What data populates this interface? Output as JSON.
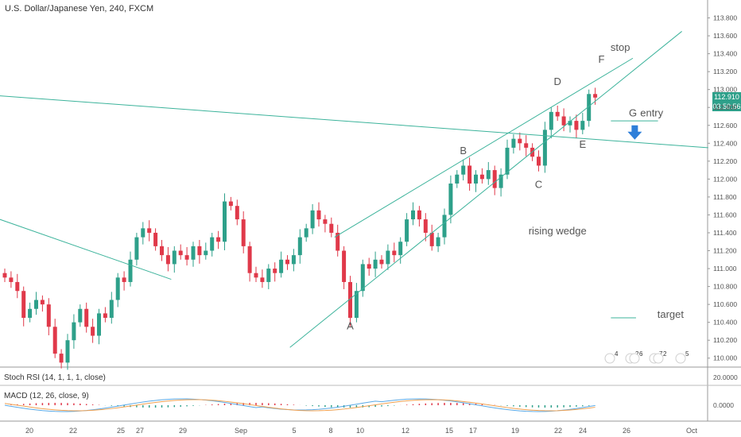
{
  "chart_data": {
    "type": "candlestick",
    "title": "U.S. Dollar/Japanese Yen, 240, FXCM",
    "y_ticks": [
      "113.800",
      "113.600",
      "113.400",
      "113.200",
      "113.000",
      "112.800",
      "112.600",
      "112.400",
      "112.200",
      "112.000",
      "111.800",
      "111.600",
      "111.400",
      "111.200",
      "111.000",
      "110.800",
      "110.600",
      "110.400",
      "110.200",
      "110.000"
    ],
    "y_range": [
      109.9,
      114.0
    ],
    "last_price": "112.910",
    "countdown": "03:50:56",
    "x_ticks": [
      "20",
      "22",
      "25",
      "27",
      "29",
      "Sep",
      "5",
      "8",
      "10",
      "12",
      "15",
      "17",
      "19",
      "22",
      "24",
      "26",
      "Oct"
    ],
    "closes": [
      110.9,
      110.85,
      110.75,
      110.45,
      110.55,
      110.65,
      110.6,
      110.35,
      110.05,
      109.95,
      110.2,
      110.4,
      110.55,
      110.35,
      110.25,
      110.5,
      110.45,
      110.65,
      110.9,
      110.85,
      111.1,
      111.35,
      111.45,
      111.4,
      111.25,
      111.15,
      111.05,
      111.2,
      111.15,
      111.1,
      111.25,
      111.15,
      111.2,
      111.35,
      111.3,
      111.75,
      111.7,
      111.55,
      111.25,
      110.95,
      110.9,
      110.85,
      111.0,
      110.95,
      111.1,
      111.05,
      111.15,
      111.35,
      111.45,
      111.65,
      111.55,
      111.5,
      111.4,
      111.2,
      110.85,
      110.45,
      110.75,
      111.05,
      111.0,
      111.1,
      111.05,
      111.2,
      111.15,
      111.3,
      111.55,
      111.65,
      111.55,
      111.4,
      111.25,
      111.35,
      111.6,
      111.95,
      112.05,
      112.15,
      111.95,
      112.05,
      112.0,
      112.1,
      111.9,
      112.05,
      112.35,
      112.45,
      112.4,
      112.35,
      112.25,
      112.15,
      112.55,
      112.75,
      112.7,
      112.6,
      112.65,
      112.55,
      112.65,
      112.95,
      112.91
    ],
    "labels": [
      {
        "text": "A",
        "date_idx": 55,
        "price": 110.32
      },
      {
        "text": "B",
        "date_idx": 73,
        "price": 112.28
      },
      {
        "text": "C",
        "date_idx": 85,
        "price": 111.9
      },
      {
        "text": "D",
        "date_idx": 88,
        "price": 113.05
      },
      {
        "text": "E",
        "date_idx": 92,
        "price": 112.35
      },
      {
        "text": "F",
        "date_idx": 95,
        "price": 113.3
      },
      {
        "text": "stop",
        "date_idx": 98,
        "price": 113.43
      },
      {
        "text": "G",
        "date_idx": 100,
        "price": 112.7
      },
      {
        "text": "entry",
        "date_idx": 103,
        "price": 112.7
      },
      {
        "text": "rising wedge",
        "date_idx": 88,
        "price": 111.38
      },
      {
        "text": "target",
        "date_idx": 106,
        "price": 110.45
      }
    ],
    "stoch_rsi_label": "Stoch RSI (14, 1, 1, 1, close)",
    "stoch_rsi_tick": "20.0000",
    "macd_label": "MACD (12, 26, close, 9)",
    "macd_tick": "0.0000",
    "event_badges": [
      "4",
      "2",
      "6",
      "7",
      "2",
      "5"
    ]
  },
  "colors": {
    "up": "#2ea08a",
    "down": "#e0394a",
    "trendline": "#3cb39b",
    "text": "#555555",
    "arrow": "#2e7fd9",
    "price_tag": "#2ea08a",
    "countdown_tag": "#2ea08a"
  }
}
